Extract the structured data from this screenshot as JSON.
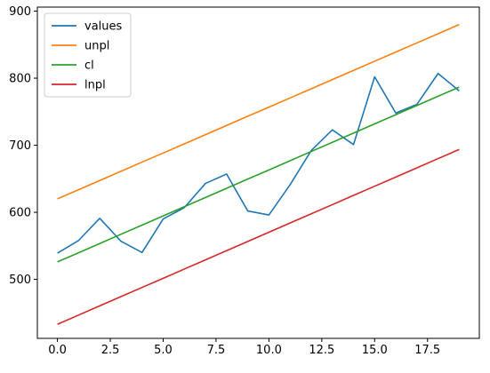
{
  "chart_data": {
    "type": "line",
    "title": "",
    "xlabel": "",
    "ylabel": "",
    "xlim": [
      -0.95,
      19.95
    ],
    "ylim": [
      412,
      906
    ],
    "x_ticks": [
      0.0,
      2.5,
      5.0,
      7.5,
      10.0,
      12.5,
      15.0,
      17.5
    ],
    "x_tick_labels": [
      "0.0",
      "2.5",
      "5.0",
      "7.5",
      "10.0",
      "12.5",
      "15.0",
      "17.5"
    ],
    "y_ticks": [
      500,
      600,
      700,
      800,
      900
    ],
    "y_tick_labels": [
      "500",
      "600",
      "700",
      "800",
      "900"
    ],
    "grid": false,
    "legend_position": "top-left",
    "x": [
      0,
      1,
      2,
      3,
      4,
      5,
      6,
      7,
      8,
      9,
      10,
      11,
      12,
      13,
      14,
      15,
      16,
      17,
      18,
      19
    ],
    "series": [
      {
        "name": "values",
        "color": "#1f77b4",
        "values": [
          539,
          558,
          591,
          557,
          540,
          590,
          607,
          643,
          657,
          602,
          596,
          641,
          692,
          723,
          701,
          802,
          748,
          761,
          807,
          781
        ]
      },
      {
        "name": "unpl",
        "color": "#ff7f0e",
        "values": [
          620,
          633.7,
          647.4,
          661.1,
          674.8,
          688.4,
          702.1,
          715.8,
          729.5,
          743.2,
          756.8,
          770.5,
          784.2,
          797.9,
          811.6,
          825.3,
          838.9,
          852.6,
          866.3,
          880
        ]
      },
      {
        "name": "cl",
        "color": "#2ca02c",
        "values": [
          526,
          539.7,
          553.4,
          567.2,
          580.9,
          594.6,
          608.3,
          622.1,
          635.8,
          649.5,
          663.2,
          676.9,
          690.7,
          704.4,
          718.1,
          731.8,
          745.6,
          759.3,
          773,
          786.7
        ]
      },
      {
        "name": "lnpl",
        "color": "#d62728",
        "values": [
          433,
          446.7,
          460.5,
          474.2,
          487.9,
          501.6,
          515.4,
          529.1,
          542.8,
          556.5,
          570.3,
          584,
          597.7,
          611.4,
          625.2,
          638.9,
          652.6,
          666.3,
          680.1,
          693.8
        ]
      }
    ]
  }
}
